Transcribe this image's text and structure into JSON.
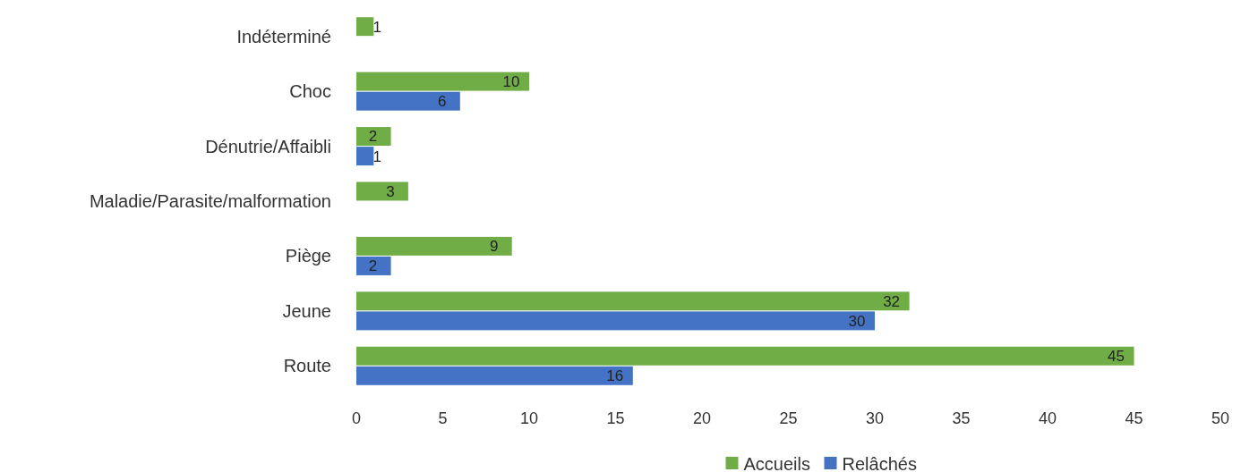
{
  "chart_data": {
    "type": "bar",
    "orientation": "horizontal",
    "categories": [
      "Indéterminé",
      "Choc",
      "Dénutrie/Affaibli",
      "Maladie/Parasite/malformation",
      "Piège",
      "Jeune",
      "Route"
    ],
    "series": [
      {
        "name": "Accueils",
        "color": "#70ad47",
        "values": [
          1,
          10,
          2,
          3,
          9,
          32,
          45
        ]
      },
      {
        "name": "Relâchés",
        "color": "#4472c4",
        "values": [
          null,
          6,
          1,
          null,
          2,
          30,
          16
        ]
      }
    ],
    "xlim": [
      0,
      50
    ],
    "xticks": [
      0,
      5,
      10,
      15,
      20,
      25,
      30,
      35,
      40,
      45,
      50
    ],
    "data_labels": true,
    "legend": "bottom",
    "grid": false
  }
}
